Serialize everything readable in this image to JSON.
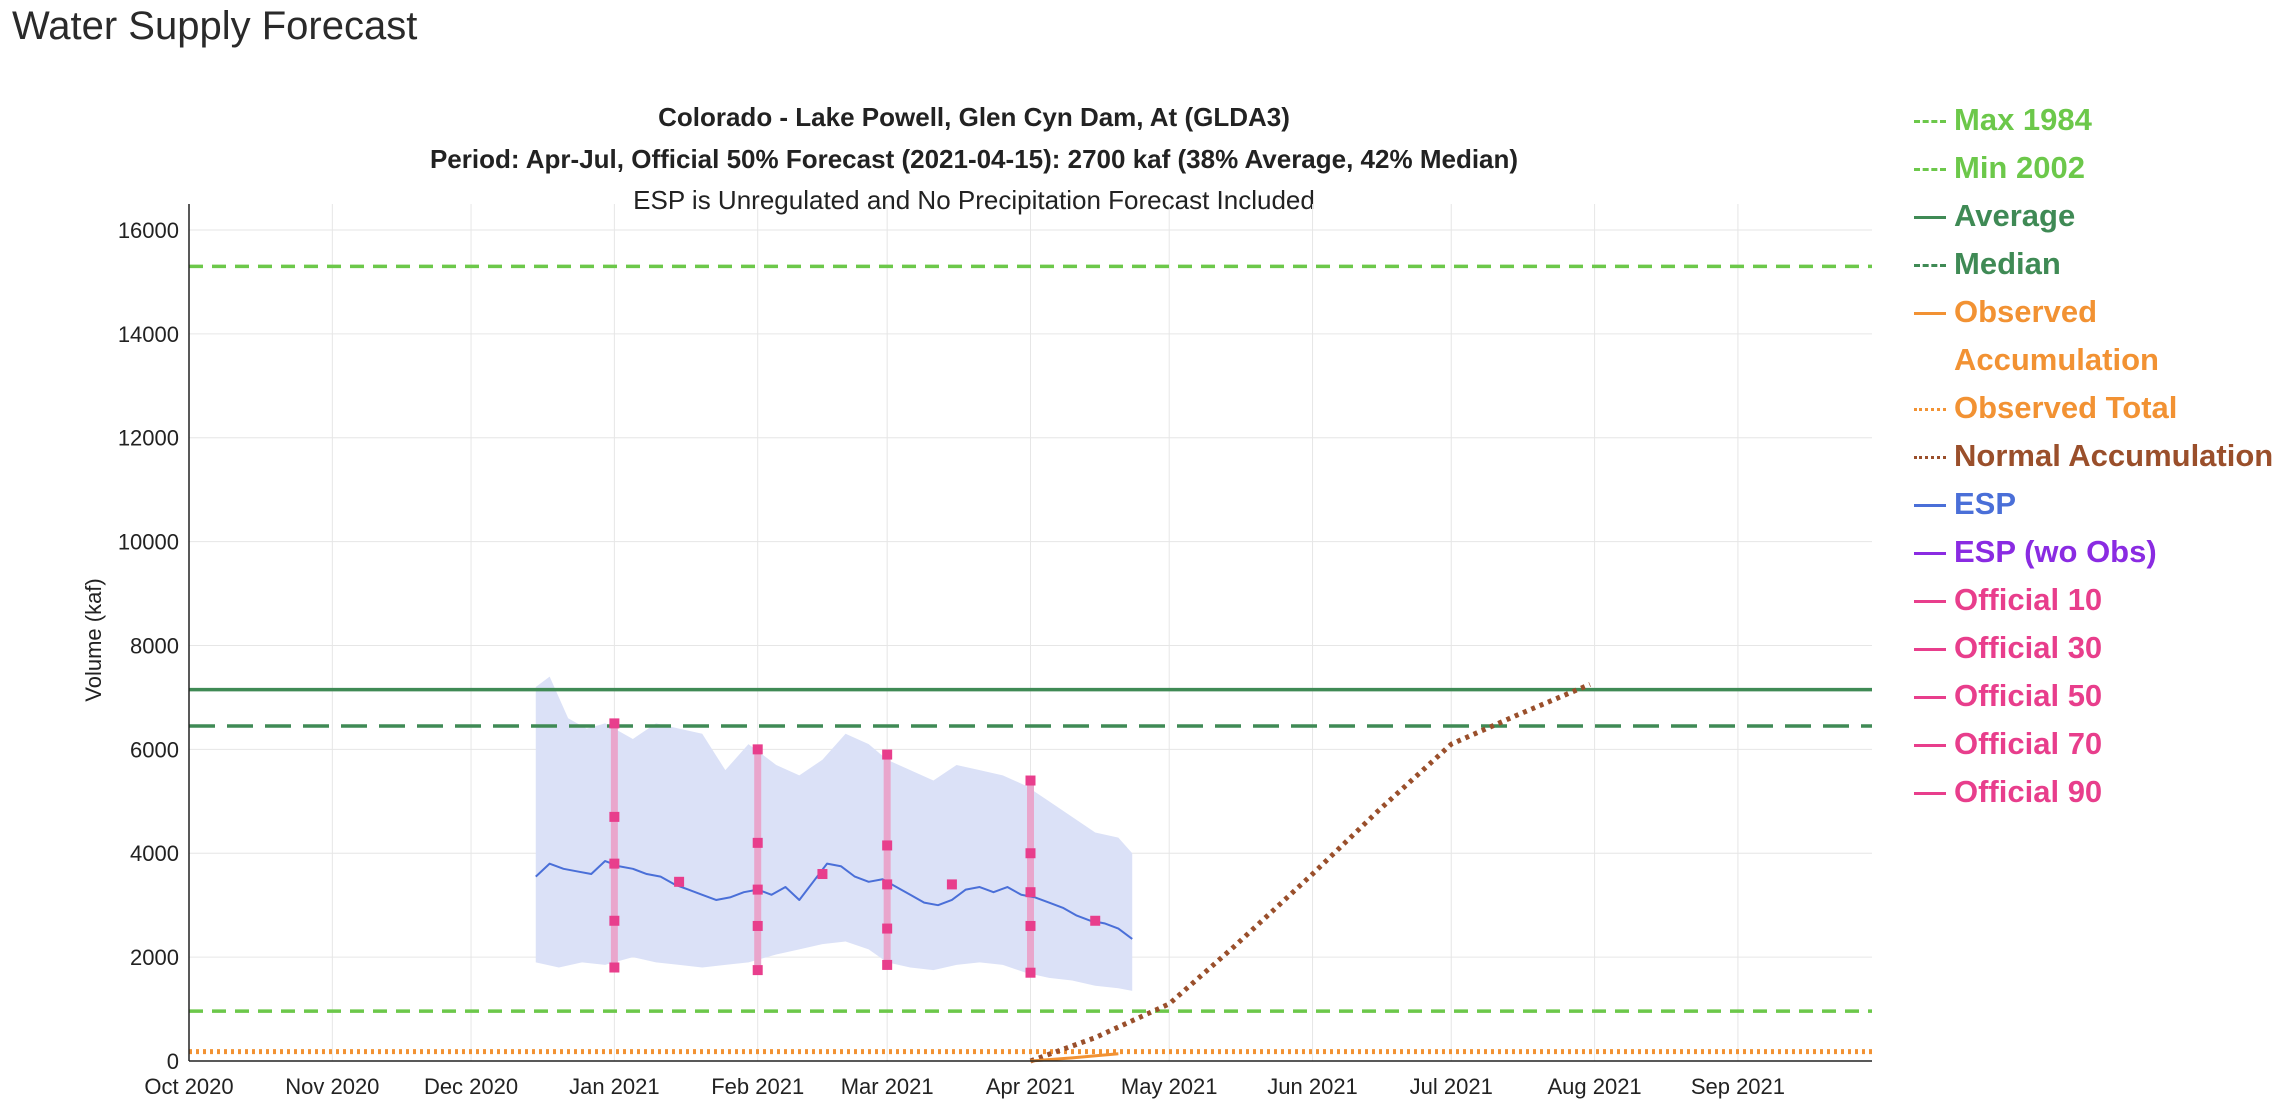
{
  "page_title": "Water Supply Forecast",
  "colors": {
    "max_min": "#6cc84a",
    "average": "#3f8a55",
    "median": "#3f8a55",
    "observed": "#f29233",
    "normal": "#9a4f2b",
    "esp": "#4a6fd8",
    "esp_band": "#dbe1f7",
    "esp_wo_obs": "#8a2be2",
    "official": "#e83e8c",
    "official_bar": "#e9a6cc",
    "grid": "#e6e6e6",
    "axis": "#222222"
  },
  "chart_data": {
    "type": "line",
    "title": "Colorado - Lake Powell, Glen Cyn Dam, At (GLDA3)",
    "subtitle": "Period: Apr-Jul, Official 50% Forecast (2021-04-15): 2700 kaf (38% Average, 42% Median)",
    "note": "ESP is Unregulated and No Precipitation Forecast Included",
    "ylabel": "Volume (kaf)",
    "xlabel": "",
    "x_range": [
      "2020-10-01",
      "2021-09-30"
    ],
    "ylim": [
      0,
      16500
    ],
    "y_ticks": [
      0,
      2000,
      4000,
      6000,
      8000,
      10000,
      12000,
      14000,
      16000
    ],
    "x_ticks": [
      {
        "date": "2020-10-01",
        "label": "Oct 2020"
      },
      {
        "date": "2020-11-01",
        "label": "Nov 2020"
      },
      {
        "date": "2020-12-01",
        "label": "Dec 2020"
      },
      {
        "date": "2021-01-01",
        "label": "Jan 2021"
      },
      {
        "date": "2021-02-01",
        "label": "Feb 2021"
      },
      {
        "date": "2021-03-01",
        "label": "Mar 2021"
      },
      {
        "date": "2021-04-01",
        "label": "Apr 2021"
      },
      {
        "date": "2021-05-01",
        "label": "May 2021"
      },
      {
        "date": "2021-06-01",
        "label": "Jun 2021"
      },
      {
        "date": "2021-07-01",
        "label": "Jul 2021"
      },
      {
        "date": "2021-08-01",
        "label": "Aug 2021"
      },
      {
        "date": "2021-09-01",
        "label": "Sep 2021"
      }
    ],
    "grid": true,
    "legend_position": "right",
    "reference_lines": [
      {
        "name": "Max 1984",
        "value": 15300,
        "style": "dash-short",
        "color_key": "max_min"
      },
      {
        "name": "Min 2002",
        "value": 960,
        "style": "dash-short",
        "color_key": "max_min"
      },
      {
        "name": "Average",
        "value": 7150,
        "style": "solid",
        "color_key": "average"
      },
      {
        "name": "Median",
        "value": 6450,
        "style": "dash-long",
        "color_key": "median"
      },
      {
        "name": "Observed Total",
        "value": 180,
        "style": "dot",
        "color_key": "observed"
      }
    ],
    "observed_accumulation": {
      "name": "Observed Accumulation",
      "points": [
        [
          "2021-04-01",
          0
        ],
        [
          "2021-04-10",
          60
        ],
        [
          "2021-04-20",
          140
        ]
      ]
    },
    "normal_accumulation": {
      "name": "Normal Accumulation",
      "points": [
        [
          "2021-04-01",
          0
        ],
        [
          "2021-04-15",
          450
        ],
        [
          "2021-05-01",
          1100
        ],
        [
          "2021-05-15",
          2200
        ],
        [
          "2021-06-01",
          3600
        ],
        [
          "2021-06-15",
          4800
        ],
        [
          "2021-07-01",
          6100
        ],
        [
          "2021-07-15",
          6650
        ],
        [
          "2021-07-31",
          7250
        ]
      ]
    },
    "esp": {
      "name": "ESP",
      "points": [
        [
          "2020-12-15",
          3550
        ],
        [
          "2020-12-18",
          3800
        ],
        [
          "2020-12-21",
          3700
        ],
        [
          "2020-12-24",
          3650
        ],
        [
          "2020-12-27",
          3600
        ],
        [
          "2020-12-30",
          3850
        ],
        [
          "2021-01-02",
          3750
        ],
        [
          "2021-01-05",
          3700
        ],
        [
          "2021-01-08",
          3600
        ],
        [
          "2021-01-11",
          3550
        ],
        [
          "2021-01-14",
          3400
        ],
        [
          "2021-01-17",
          3300
        ],
        [
          "2021-01-20",
          3200
        ],
        [
          "2021-01-23",
          3100
        ],
        [
          "2021-01-26",
          3150
        ],
        [
          "2021-01-29",
          3250
        ],
        [
          "2021-02-01",
          3300
        ],
        [
          "2021-02-04",
          3200
        ],
        [
          "2021-02-07",
          3350
        ],
        [
          "2021-02-10",
          3100
        ],
        [
          "2021-02-13",
          3450
        ],
        [
          "2021-02-16",
          3800
        ],
        [
          "2021-02-19",
          3750
        ],
        [
          "2021-02-22",
          3550
        ],
        [
          "2021-02-25",
          3450
        ],
        [
          "2021-02-28",
          3500
        ],
        [
          "2021-03-03",
          3350
        ],
        [
          "2021-03-06",
          3200
        ],
        [
          "2021-03-09",
          3050
        ],
        [
          "2021-03-12",
          3000
        ],
        [
          "2021-03-15",
          3100
        ],
        [
          "2021-03-18",
          3300
        ],
        [
          "2021-03-21",
          3350
        ],
        [
          "2021-03-24",
          3250
        ],
        [
          "2021-03-27",
          3350
        ],
        [
          "2021-03-30",
          3200
        ],
        [
          "2021-04-02",
          3150
        ],
        [
          "2021-04-05",
          3050
        ],
        [
          "2021-04-08",
          2950
        ],
        [
          "2021-04-11",
          2800
        ],
        [
          "2021-04-14",
          2700
        ],
        [
          "2021-04-17",
          2650
        ],
        [
          "2021-04-20",
          2550
        ],
        [
          "2021-04-23",
          2350
        ]
      ]
    },
    "esp_band": {
      "upper": [
        [
          "2020-12-15",
          7200
        ],
        [
          "2020-12-18",
          7400
        ],
        [
          "2020-12-22",
          6600
        ],
        [
          "2020-12-26",
          6400
        ],
        [
          "2020-12-30",
          6500
        ],
        [
          "2021-01-05",
          6200
        ],
        [
          "2021-01-10",
          6500
        ],
        [
          "2021-01-15",
          6400
        ],
        [
          "2021-01-20",
          6300
        ],
        [
          "2021-01-25",
          5600
        ],
        [
          "2021-01-30",
          6100
        ],
        [
          "2021-02-05",
          5700
        ],
        [
          "2021-02-10",
          5500
        ],
        [
          "2021-02-15",
          5800
        ],
        [
          "2021-02-20",
          6300
        ],
        [
          "2021-02-25",
          6100
        ],
        [
          "2021-03-01",
          5800
        ],
        [
          "2021-03-06",
          5600
        ],
        [
          "2021-03-11",
          5400
        ],
        [
          "2021-03-16",
          5700
        ],
        [
          "2021-03-21",
          5600
        ],
        [
          "2021-03-26",
          5500
        ],
        [
          "2021-03-31",
          5300
        ],
        [
          "2021-04-05",
          5000
        ],
        [
          "2021-04-10",
          4700
        ],
        [
          "2021-04-15",
          4400
        ],
        [
          "2021-04-20",
          4300
        ],
        [
          "2021-04-23",
          4000
        ]
      ],
      "lower": [
        [
          "2020-12-15",
          1900
        ],
        [
          "2020-12-20",
          1800
        ],
        [
          "2020-12-25",
          1900
        ],
        [
          "2020-12-30",
          1850
        ],
        [
          "2021-01-05",
          2000
        ],
        [
          "2021-01-10",
          1900
        ],
        [
          "2021-01-15",
          1850
        ],
        [
          "2021-01-20",
          1800
        ],
        [
          "2021-01-25",
          1850
        ],
        [
          "2021-01-30",
          1900
        ],
        [
          "2021-02-05",
          2050
        ],
        [
          "2021-02-10",
          2150
        ],
        [
          "2021-02-15",
          2250
        ],
        [
          "2021-02-20",
          2300
        ],
        [
          "2021-02-25",
          2150
        ],
        [
          "2021-03-01",
          1900
        ],
        [
          "2021-03-06",
          1800
        ],
        [
          "2021-03-11",
          1750
        ],
        [
          "2021-03-16",
          1850
        ],
        [
          "2021-03-21",
          1900
        ],
        [
          "2021-03-26",
          1850
        ],
        [
          "2021-03-31",
          1700
        ],
        [
          "2021-04-05",
          1600
        ],
        [
          "2021-04-10",
          1550
        ],
        [
          "2021-04-15",
          1450
        ],
        [
          "2021-04-20",
          1400
        ],
        [
          "2021-04-23",
          1350
        ]
      ]
    },
    "official": {
      "bars": [
        {
          "date": "2021-01-01",
          "values": [
            1800,
            2700,
            3800,
            4700,
            6500
          ]
        },
        {
          "date": "2021-02-01",
          "values": [
            1750,
            2600,
            3300,
            4200,
            6000
          ]
        },
        {
          "date": "2021-03-01",
          "values": [
            1850,
            2550,
            3400,
            4150,
            5900
          ]
        },
        {
          "date": "2021-04-01",
          "values": [
            1700,
            2600,
            3250,
            4000,
            5400
          ]
        }
      ],
      "midmonth": [
        {
          "date": "2021-01-15",
          "value": 3450
        },
        {
          "date": "2021-02-15",
          "value": 3600
        },
        {
          "date": "2021-03-15",
          "value": 3400
        },
        {
          "date": "2021-04-15",
          "value": 2700
        }
      ]
    }
  },
  "legend": [
    {
      "label": "Max 1984",
      "color": "#6cc84a",
      "style": "dashed"
    },
    {
      "label": "Min 2002",
      "color": "#6cc84a",
      "style": "dashed"
    },
    {
      "label": "Average",
      "color": "#3f8a55",
      "style": "solid"
    },
    {
      "label": "Median",
      "color": "#3f8a55",
      "style": "dashed"
    },
    {
      "label": "Observed Accumulation",
      "color": "#f29233",
      "style": "solid"
    },
    {
      "label": "Observed Total",
      "color": "#f29233",
      "style": "dotted"
    },
    {
      "label": "Normal Accumulation",
      "color": "#9a4f2b",
      "style": "dotted"
    },
    {
      "label": "ESP",
      "color": "#4a6fd8",
      "style": "solid"
    },
    {
      "label": "ESP (wo Obs)",
      "color": "#8a2be2",
      "style": "solid"
    },
    {
      "label": "Official 10",
      "color": "#e83e8c",
      "style": "solid"
    },
    {
      "label": "Official 30",
      "color": "#e83e8c",
      "style": "solid"
    },
    {
      "label": "Official 50",
      "color": "#e83e8c",
      "style": "solid"
    },
    {
      "label": "Official 70",
      "color": "#e83e8c",
      "style": "solid"
    },
    {
      "label": "Official 90",
      "color": "#e83e8c",
      "style": "solid"
    }
  ]
}
